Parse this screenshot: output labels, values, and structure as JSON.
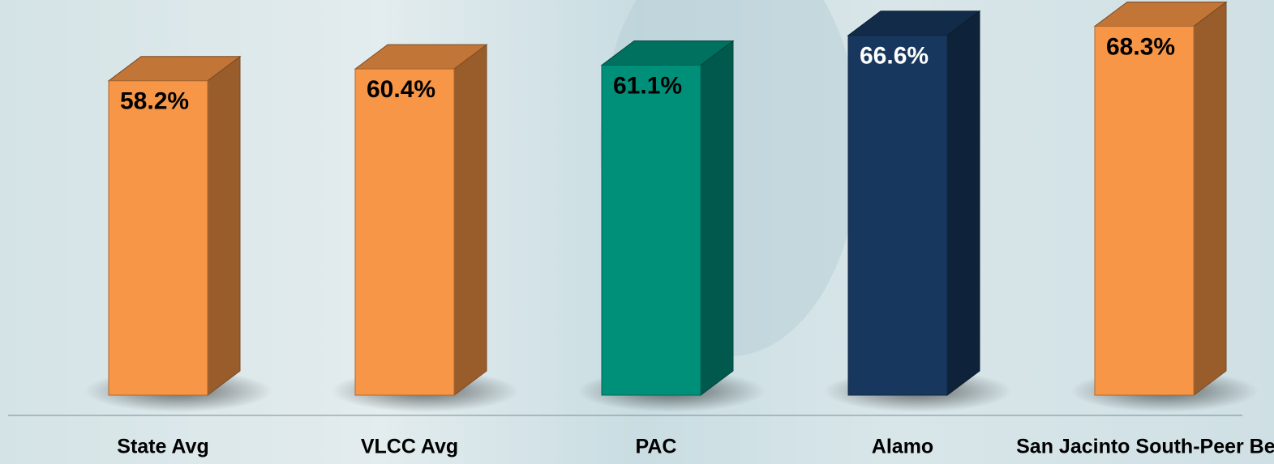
{
  "chart_data": {
    "type": "bar3d",
    "categories": [
      "State Avg",
      "VLCC Avg",
      "PAC",
      "Alamo",
      "San Jacinto South-Peer Best"
    ],
    "values": [
      58.2,
      60.4,
      61.1,
      66.6,
      68.3
    ],
    "value_labels": [
      "58.2%",
      "60.4%",
      "61.1%",
      "66.6%",
      "68.3%"
    ],
    "colors": [
      "#f79646",
      "#f79646",
      "#00907a",
      "#17375e",
      "#f79646"
    ]
  }
}
